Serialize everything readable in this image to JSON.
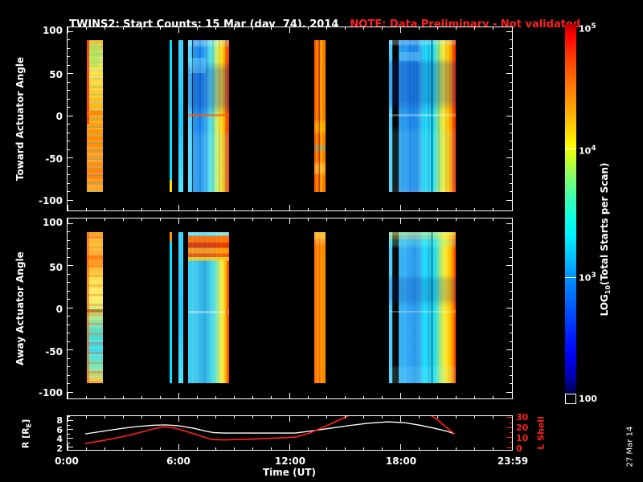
{
  "title": {
    "main": "TWINS2: Start Counts: 15 Mar (day  74), 2014",
    "note": "NOTE: Data Preliminary - Not validated"
  },
  "colors": {
    "background": "#000000",
    "foreground": "#ffffff",
    "note_red": "#ff2020",
    "l_shell_red": "#ff2020",
    "r_line_white": "#ffffff"
  },
  "panels": {
    "toward": {
      "ylabel": "Toward Actuator Angle",
      "ytick_labels": [
        "100",
        "50",
        "0",
        "-50",
        "-100"
      ]
    },
    "away": {
      "ylabel": "Away Actuator Angle",
      "ytick_labels": [
        "100",
        "50",
        "0",
        "-50",
        "-100"
      ]
    },
    "orbit": {
      "ylabel_left": {
        "pre": "R [R",
        "sub": "E",
        "post": "]"
      },
      "ytick_labels_left": [
        "8",
        "6",
        "4",
        "2"
      ],
      "ylabel_right": "L Shell",
      "ytick_labels_right": [
        "30",
        "20",
        "10",
        "0"
      ]
    }
  },
  "xaxis": {
    "label": "Time (UT)",
    "tick_labels": [
      "0:00",
      "6:00",
      "12:00",
      "18:00",
      "23:59"
    ]
  },
  "colorbar": {
    "label": {
      "pre": "LOG",
      "sub": "10",
      "post": "(Total Starts per Scan)"
    },
    "tick_labels": [
      {
        "base": "10",
        "exp": "5"
      },
      {
        "base": "10",
        "exp": "4"
      },
      {
        "base": "10",
        "exp": "3"
      },
      {
        "base": "100",
        "exp": ""
      }
    ]
  },
  "date_stamp": "27 Mar 14",
  "chart_data": [
    {
      "type": "heatmap",
      "title": "Toward Actuator Angle spectrogram",
      "x_range_hours": [
        0,
        24
      ],
      "y_range_deg": [
        -100,
        100
      ],
      "data_extent_deg": [
        -90,
        90
      ],
      "colorbar": {
        "scale": "log10",
        "min": 100,
        "max": 100000,
        "label": "LOG10(Total Starts per Scan)"
      },
      "data_segments": [
        {
          "start_h": 1.04,
          "end_h": 1.9,
          "style": "mwA-t",
          "description": "mottled orange/yellow, high counts ~1e4-1e5, red left edge",
          "overlays": [
            {
              "l": "0%",
              "t": "0%",
              "w": "15%",
              "h": "55%",
              "c": "rgba(255,40,0,0.8)"
            },
            {
              "l": "15%",
              "t": "2%",
              "w": "60%",
              "h": "16%",
              "c": "rgba(160,230,90,0.55)"
            },
            {
              "l": "0%",
              "t": "47%",
              "w": "100%",
              "h": "3%",
              "c": "rgba(255,120,0,0.6)"
            }
          ]
        },
        {
          "start_h": 5.51,
          "end_h": 5.64,
          "style": "thin-t",
          "description": "narrow cyan stripe ~1e3, yellow base",
          "overlays": []
        },
        {
          "start_h": 6.01,
          "end_h": 6.27,
          "style": "strip",
          "description": "cyan stripe ~1e3",
          "overlays": []
        },
        {
          "start_h": 6.49,
          "end_h": 8.71,
          "style": "wideA-t",
          "description": "blue-cyan body ~3e2-1e3, yellow-orange-red right edge ~1e4-1e5",
          "overlays": [
            {
              "l": "10%",
              "t": "0%",
              "w": "2%",
              "h": "100%",
              "c": "rgba(0,0,0,0.7)"
            },
            {
              "l": "4%",
              "t": "12%",
              "w": "40%",
              "h": "10%",
              "c": "rgba(140,240,255,0.35)"
            },
            {
              "l": "0%",
              "t": "49%",
              "w": "100%",
              "h": "1.5%",
              "c": "rgba(255,90,0,0.65)"
            }
          ]
        },
        {
          "start_h": 13.32,
          "end_h": 13.92,
          "style": "wB-t",
          "description": "orange-red column ~1e4-1e5, mottled lower half",
          "overlays": [
            {
              "l": "42%",
              "t": "0%",
              "w": "7%",
              "h": "100%",
              "c": "rgba(120,30,0,0.5)"
            }
          ]
        },
        {
          "start_h": 17.38,
          "end_h": 20.97,
          "style": "wideB-t",
          "description": "wide blue body ~3e2 with cyan stripes and black data gaps, yellow-orange-red right edge",
          "overlays": [
            {
              "l": "63%",
              "t": "0%",
              "w": "2%",
              "h": "100%",
              "c": "rgba(0,0,0,0.75)"
            },
            {
              "l": "15%",
              "t": "8%",
              "w": "30%",
              "h": "6%",
              "c": "rgba(150,240,255,0.3)"
            },
            {
              "l": "0%",
              "t": "49%",
              "w": "100%",
              "h": "1.5%",
              "c": "rgba(255,255,255,0.3)"
            },
            {
              "l": "96%",
              "t": "48.5%",
              "w": "4%",
              "h": "2.5%",
              "c": "rgba(255,100,0,0.9)"
            }
          ]
        }
      ]
    },
    {
      "type": "heatmap",
      "title": "Away Actuator Angle spectrogram",
      "x_range_hours": [
        0,
        24
      ],
      "y_range_deg": [
        -100,
        100
      ],
      "data_extent_deg": [
        -90,
        90
      ],
      "colorbar": {
        "scale": "log10",
        "min": 100,
        "max": 100000,
        "label": "LOG10(Total Starts per Scan)"
      },
      "data_segments": [
        {
          "start_h": 1.04,
          "end_h": 1.9,
          "style": "mwA-a",
          "description": "mottled orange top, yellow middle, cyan lower third",
          "overlays": [
            {
              "l": "0%",
              "t": "0%",
              "w": "15%",
              "h": "100%",
              "c": "rgba(255,90,0,0.55)"
            },
            {
              "l": "0%",
              "t": "51%",
              "w": "100%",
              "h": "2%",
              "c": "rgba(150,40,0,0.55)"
            }
          ]
        },
        {
          "start_h": 5.51,
          "end_h": 5.64,
          "style": "thin-a",
          "description": "narrow cyan stripe, orange top tip",
          "overlays": []
        },
        {
          "start_h": 6.01,
          "end_h": 6.27,
          "style": "strip",
          "description": "cyan stripe ~1e3",
          "overlays": []
        },
        {
          "start_h": 6.49,
          "end_h": 8.71,
          "style": "wideA-a",
          "description": "orange-red mottled top rows (+60..+90 deg), cyan body, orange-red right edge",
          "overlays": [
            {
              "l": "0%",
              "t": "52%",
              "w": "100%",
              "h": "2%",
              "c": "rgba(255,255,255,0.35)"
            },
            {
              "l": "92%",
              "t": "51%",
              "w": "8%",
              "h": "4%",
              "c": "rgba(255,120,0,0.9)"
            }
          ]
        },
        {
          "start_h": 13.32,
          "end_h": 13.92,
          "style": "wB-a",
          "description": "orange-red column, mottled top",
          "overlays": []
        },
        {
          "start_h": 17.38,
          "end_h": 20.97,
          "style": "wideB-a",
          "description": "wide cyan-blue body with yellow-green top strip, black gap column, yellow-orange-red right edge",
          "overlays": [
            {
              "l": "63%",
              "t": "0%",
              "w": "2%",
              "h": "100%",
              "c": "rgba(0,0,0,0.7)"
            },
            {
              "l": "0%",
              "t": "52%",
              "w": "100%",
              "h": "1.5%",
              "c": "rgba(255,255,255,0.3)"
            },
            {
              "l": "96%",
              "t": "51%",
              "w": "4%",
              "h": "3%",
              "c": "rgba(255,120,0,0.85)"
            }
          ]
        }
      ]
    },
    {
      "type": "line",
      "x_range_hours": [
        0,
        24
      ],
      "left_axis": {
        "label": "R [Re]",
        "ticks": [
          2,
          4,
          6,
          8
        ],
        "range": [
          1.3,
          8.7
        ]
      },
      "right_axis": {
        "label": "L Shell",
        "ticks": [
          0,
          10,
          20,
          30
        ],
        "range": [
          -2,
          31.5
        ]
      },
      "series": [
        {
          "name": "R [Re]",
          "color": "#ffffff",
          "axis": "left",
          "points": [
            [
              0.95,
              5.0
            ],
            [
              1.5,
              5.35
            ],
            [
              2.2,
              5.8
            ],
            [
              3.0,
              6.3
            ],
            [
              3.8,
              6.7
            ],
            [
              4.6,
              6.95
            ],
            [
              5.3,
              7.05
            ],
            [
              6.0,
              6.85
            ],
            [
              6.8,
              6.3
            ],
            [
              7.5,
              5.6
            ],
            [
              7.9,
              5.3
            ],
            [
              8.5,
              5.2
            ],
            [
              10.0,
              5.2
            ],
            [
              12.3,
              5.2
            ],
            [
              13.2,
              5.7
            ],
            [
              14.2,
              6.3
            ],
            [
              15.2,
              6.9
            ],
            [
              16.2,
              7.4
            ],
            [
              17.3,
              7.75
            ],
            [
              18.2,
              7.55
            ],
            [
              19.0,
              7.0
            ],
            [
              19.8,
              6.3
            ],
            [
              20.5,
              5.6
            ],
            [
              20.9,
              5.0
            ]
          ]
        },
        {
          "name": "L Shell",
          "color": "#ff2020",
          "axis": "right",
          "points": [
            [
              0.95,
              4.0
            ],
            [
              2.2,
              8.0
            ],
            [
              3.0,
              11.0
            ],
            [
              3.8,
              14.5
            ],
            [
              4.6,
              18.5
            ],
            [
              5.2,
              21.0
            ],
            [
              5.8,
              19.5
            ],
            [
              6.8,
              14.0
            ],
            [
              7.8,
              8.0
            ],
            [
              8.5,
              7.7
            ],
            [
              10.0,
              8.5
            ],
            [
              11.5,
              9.7
            ],
            [
              12.3,
              10.5
            ],
            [
              13.0,
              14.0
            ],
            [
              14.0,
              22.0
            ],
            [
              15.0,
              30.5
            ],
            [
              15.6,
              36.0
            ],
            [
              19.3,
              36.0
            ],
            [
              19.9,
              29.0
            ],
            [
              20.9,
              13.5
            ]
          ]
        }
      ]
    }
  ]
}
